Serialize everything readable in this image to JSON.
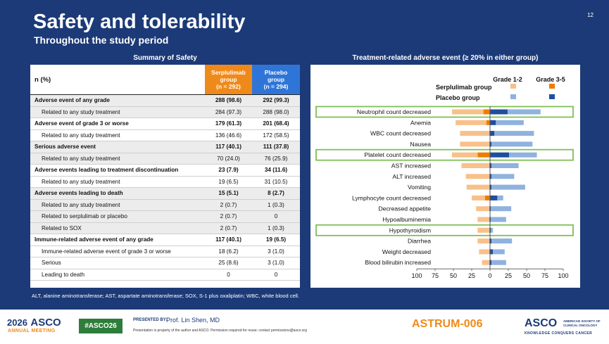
{
  "slide": {
    "title": "Safety and tolerability",
    "subtitle": "Throughout the study period",
    "page_number": "12",
    "left_panel_title": "Summary of Safety",
    "right_panel_title": "Treatment-related adverse event (≥ 20% in either group)",
    "footnote": "ALT, alanine aminotransferase; AST, aspartate aminotransferase; SOX, S-1 plus oxaliplatin; WBC, white blood cell."
  },
  "table": {
    "header": {
      "label": "n (%)",
      "serplulimab": [
        "Serplulimab",
        "group",
        "(n = 292)"
      ],
      "placebo": [
        "Placebo",
        "group",
        "(n = 294)"
      ]
    },
    "rows": [
      {
        "label": "Adverse event of any grade",
        "s": "288 (98.6)",
        "p": "292 (99.3)",
        "bold": true,
        "indent": false,
        "shade": true
      },
      {
        "label": "Related to any study treatment",
        "s": "284 (97.3)",
        "p": "288 (98.0)",
        "bold": false,
        "indent": true,
        "shade": true
      },
      {
        "label": "Adverse event of grade 3 or worse",
        "s": "179 (61.3)",
        "p": "201 (68.4)",
        "bold": true,
        "indent": false,
        "shade": false
      },
      {
        "label": "Related to any study treatment",
        "s": "136 (46.6)",
        "p": "172 (58.5)",
        "bold": false,
        "indent": true,
        "shade": false
      },
      {
        "label": "Serious adverse event",
        "s": "117 (40.1)",
        "p": "111 (37.8)",
        "bold": true,
        "indent": false,
        "shade": true
      },
      {
        "label": "Related to any study treatment",
        "s": "70 (24.0)",
        "p": "76 (25.9)",
        "bold": false,
        "indent": true,
        "shade": true
      },
      {
        "label": "Adverse events leading to treatment discontinuation",
        "s": "23 (7.9)",
        "p": "34 (11.6)",
        "bold": true,
        "indent": false,
        "shade": false
      },
      {
        "label": "Related to any study treatment",
        "s": "19 (6.5)",
        "p": "31 (10.5)",
        "bold": false,
        "indent": true,
        "shade": false
      },
      {
        "label": "Adverse events leading to death",
        "s": "15 (5.1)",
        "p": "8 (2.7)",
        "bold": true,
        "indent": false,
        "shade": true
      },
      {
        "label": "Related to any study treatment",
        "s": "2 (0.7)",
        "p": "1 (0.3)",
        "bold": false,
        "indent": true,
        "shade": true
      },
      {
        "label": "Related to serplulimab or placebo",
        "s": "2 (0.7)",
        "p": "0",
        "bold": false,
        "indent": true,
        "shade": true
      },
      {
        "label": "Related to SOX",
        "s": "2 (0.7)",
        "p": "1 (0.3)",
        "bold": false,
        "indent": true,
        "shade": true
      },
      {
        "label": "Immune-related adverse event of any grade",
        "s": "117 (40.1)",
        "p": "19 (6.5)",
        "bold": true,
        "indent": false,
        "shade": false
      },
      {
        "label": "Immune-related adverse event of grade 3 or worse",
        "s": "18 (6.2)",
        "p": "3 (1.0)",
        "bold": false,
        "indent": true,
        "shade": false
      },
      {
        "label": "Serious",
        "s": "25 (8.6)",
        "p": "3 (1.0)",
        "bold": false,
        "indent": true,
        "shade": false
      },
      {
        "label": "Leading to death",
        "s": "0",
        "p": "0",
        "bold": false,
        "indent": true,
        "shade": false
      }
    ]
  },
  "chart_data": {
    "type": "bar",
    "orientation": "horizontal",
    "title": "Treatment-related adverse event (≥ 20% in either group)",
    "legend": {
      "col_headers": [
        "Grade 1-2",
        "Grade 3-5"
      ],
      "rows": [
        "Serplulimab group",
        "Placebo group"
      ],
      "placement": "top-right"
    },
    "categories": [
      "Neutrophil count decreased",
      "Anemia",
      "WBC count decreased",
      "Nausea",
      "Platelet count decreased",
      "AST increased",
      "ALT increased",
      "Vomiting",
      "Lymphocyte count decreased",
      "Decreased appetite",
      "Hypoalbuminemia",
      "Hypothyroidism",
      "Diarrhea",
      "Weight decreased",
      "Blood bilirubin increased"
    ],
    "highlighted": [
      "Neutrophil count decreased",
      "Platelet count decreased",
      "Hypothyroidism"
    ],
    "series": [
      {
        "name": "Serplulimab group Grade 1-2",
        "side": "left",
        "color": "#f8c08a",
        "values": [
          43,
          42,
          40,
          40,
          35,
          38,
          32,
          31,
          18,
          18,
          16,
          16,
          16,
          14,
          10
        ]
      },
      {
        "name": "Serplulimab group Grade 3-5",
        "side": "left",
        "color": "#ef7d00",
        "values": [
          9,
          5,
          1,
          1,
          17,
          1,
          1,
          1,
          7,
          1,
          1,
          1,
          1,
          1,
          1
        ]
      },
      {
        "name": "Placebo group Grade 1-2",
        "side": "right",
        "color": "#8fb2de",
        "values": [
          45,
          38,
          54,
          56,
          38,
          37,
          31,
          46,
          8,
          28,
          21,
          3,
          28,
          16,
          20
        ]
      },
      {
        "name": "Placebo group Grade 3-5",
        "side": "right",
        "color": "#1f4e9e",
        "values": [
          24,
          8,
          6,
          2,
          26,
          2,
          2,
          2,
          10,
          1,
          1,
          1,
          2,
          4,
          2
        ]
      }
    ],
    "x_ticks": [
      "100",
      "75",
      "50",
      "25",
      "0",
      "25",
      "50",
      "75",
      "100"
    ],
    "xlim": [
      -100,
      100
    ],
    "colors": {
      "s12": "#f8c08a",
      "s35": "#ef7d00",
      "p12": "#8fb2de",
      "p35": "#1f4e9e",
      "highlight": "#7fbf55"
    }
  },
  "footer": {
    "logo_year": "2026",
    "logo_org": "ASCO",
    "logo_sub": "ANNUAL MEETING",
    "hashtag": "#ASCO26",
    "presented_by": "PRESENTED BY:",
    "presenter": "Prof. Lin Shen, MD",
    "note": "Presentation is property of the author and ASCO. Permission required for reuse; contact permissions@asco.org",
    "trial_name": "ASTRUM-006",
    "asco_right": "ASCO",
    "society": "AMERICAN SOCIETY OF CLINICAL ONCOLOGY",
    "slogan": "KNOWLEDGE CONQUERS CANCER"
  }
}
